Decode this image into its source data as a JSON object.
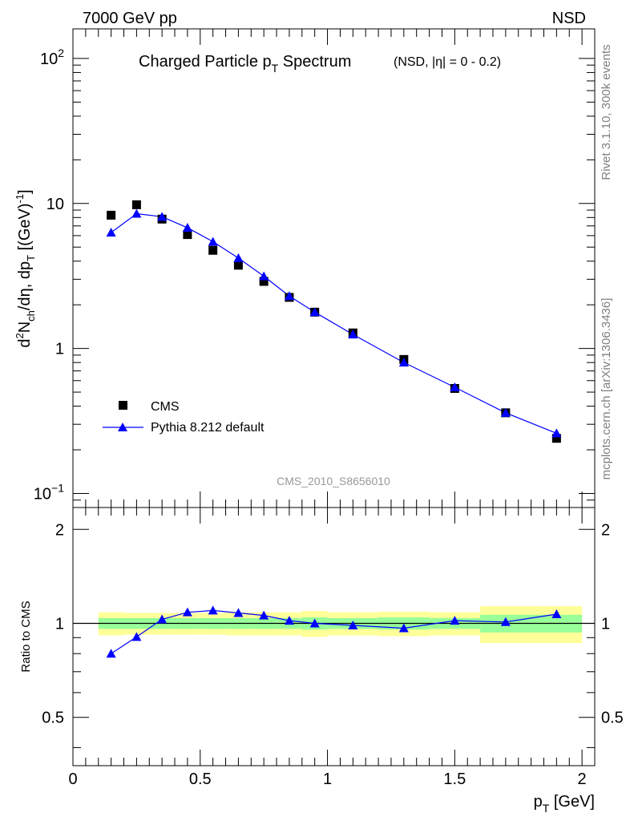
{
  "header": {
    "left": "7000 GeV pp",
    "right": "NSD"
  },
  "side_labels": {
    "rivet": "Rivet 3.1.10,  300k events",
    "mcplots": "mcplots.cern.ch [arXiv:1306.3436]"
  },
  "colors": {
    "mc": "#0000ff",
    "band_inner": "#99ff99",
    "band_outer": "#ffff99",
    "data": "#000000",
    "side_text": "#808080"
  },
  "chart_data": [
    {
      "type": "scatter",
      "title_main": "Charged Particle p",
      "title_sub": "T",
      "title_tail": " Spectrum",
      "title_extra": "(NSD, |η| =    0 - 0.2)",
      "analysis_label": "CMS_2010_S8656010",
      "ylabel": "d²N_ch/dη, dp_T [(GeV)⁻¹]",
      "yscale": "log",
      "xlim": [
        0,
        2.05
      ],
      "ylim": [
        0.08,
        160
      ],
      "yticks": [
        {
          "v": 100,
          "base": "10",
          "exp": "2"
        },
        {
          "v": 10,
          "base": "10",
          "exp": ""
        },
        {
          "v": 1,
          "base": "1",
          "exp": ""
        },
        {
          "v": 0.1,
          "base": "10",
          "exp": "−1"
        }
      ],
      "legend_position": "bottom-left",
      "series": [
        {
          "name": "CMS",
          "marker": "square",
          "x": [
            0.15,
            0.25,
            0.35,
            0.45,
            0.55,
            0.65,
            0.75,
            0.85,
            0.95,
            1.1,
            1.3,
            1.5,
            1.7,
            1.9
          ],
          "y": [
            8.3,
            9.8,
            7.8,
            6.1,
            4.75,
            3.75,
            2.9,
            2.25,
            1.78,
            1.28,
            0.84,
            0.53,
            0.36,
            0.24
          ]
        },
        {
          "name": "Pythia 8.212 default",
          "marker": "triangle",
          "x": [
            0.15,
            0.25,
            0.35,
            0.45,
            0.55,
            0.65,
            0.75,
            0.85,
            0.95,
            1.1,
            1.3,
            1.5,
            1.7,
            1.9
          ],
          "y": [
            6.3,
            8.5,
            8.1,
            6.8,
            5.45,
            4.2,
            3.15,
            2.3,
            1.78,
            1.25,
            0.8,
            0.54,
            0.36,
            0.26
          ]
        }
      ]
    },
    {
      "type": "line",
      "ylabel": "Ratio to CMS",
      "xlabel_main": "p",
      "xlabel_sub": "T",
      "xlabel_tail": " [GeV]",
      "xlim": [
        0,
        2.05
      ],
      "ylim": [
        0.35,
        2.35
      ],
      "yticks": [
        "0.5",
        "1",
        "2"
      ],
      "xticks": [
        "0",
        "0.5",
        "1",
        "1.5",
        "2"
      ],
      "reference_line": 1,
      "bands": [
        {
          "x0": 0.1,
          "x1": 0.2,
          "inner": [
            0.96,
            1.04
          ],
          "outer": [
            0.915,
            1.085
          ]
        },
        {
          "x0": 0.2,
          "x1": 0.3,
          "inner": [
            0.96,
            1.04
          ],
          "outer": [
            0.92,
            1.08
          ]
        },
        {
          "x0": 0.3,
          "x1": 0.4,
          "inner": [
            0.96,
            1.04
          ],
          "outer": [
            0.92,
            1.08
          ]
        },
        {
          "x0": 0.4,
          "x1": 0.5,
          "inner": [
            0.96,
            1.04
          ],
          "outer": [
            0.92,
            1.08
          ]
        },
        {
          "x0": 0.5,
          "x1": 0.6,
          "inner": [
            0.96,
            1.04
          ],
          "outer": [
            0.92,
            1.08
          ]
        },
        {
          "x0": 0.6,
          "x1": 0.7,
          "inner": [
            0.96,
            1.04
          ],
          "outer": [
            0.915,
            1.085
          ]
        },
        {
          "x0": 0.7,
          "x1": 0.8,
          "inner": [
            0.96,
            1.04
          ],
          "outer": [
            0.915,
            1.085
          ]
        },
        {
          "x0": 0.8,
          "x1": 0.9,
          "inner": [
            0.96,
            1.04
          ],
          "outer": [
            0.915,
            1.085
          ]
        },
        {
          "x0": 0.9,
          "x1": 1.0,
          "inner": [
            0.955,
            1.045
          ],
          "outer": [
            0.905,
            1.095
          ]
        },
        {
          "x0": 1.0,
          "x1": 1.2,
          "inner": [
            0.96,
            1.04
          ],
          "outer": [
            0.915,
            1.085
          ]
        },
        {
          "x0": 1.2,
          "x1": 1.4,
          "inner": [
            0.955,
            1.045
          ],
          "outer": [
            0.91,
            1.09
          ]
        },
        {
          "x0": 1.4,
          "x1": 1.6,
          "inner": [
            0.96,
            1.04
          ],
          "outer": [
            0.915,
            1.085
          ]
        },
        {
          "x0": 1.6,
          "x1": 2.0,
          "inner": [
            0.935,
            1.065
          ],
          "outer": [
            0.865,
            1.135
          ]
        }
      ],
      "series": [
        {
          "name": "Pythia 8.212 default",
          "x": [
            0.15,
            0.25,
            0.35,
            0.45,
            0.55,
            0.65,
            0.75,
            0.85,
            0.95,
            1.1,
            1.3,
            1.5,
            1.7,
            1.9
          ],
          "y": [
            0.8,
            0.905,
            1.03,
            1.085,
            1.1,
            1.08,
            1.06,
            1.02,
            1.0,
            0.985,
            0.965,
            1.02,
            1.01,
            1.07
          ]
        }
      ]
    }
  ]
}
